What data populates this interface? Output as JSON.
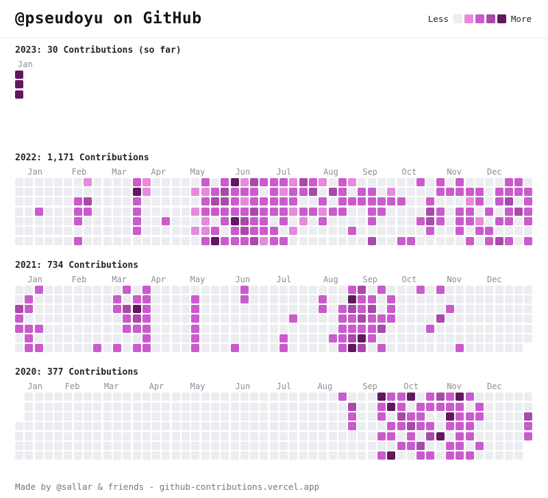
{
  "header": {
    "title": "@pseudoyu on GitHub",
    "legend": {
      "less_label": "Less",
      "more_label": "More"
    }
  },
  "colors": {
    "background": "#ffffff",
    "grade0": "#ebedf0",
    "grade1": "#e48bdc",
    "grade2": "#ca5bcc",
    "grade3": "#a74aa8",
    "grade4": "#61185f",
    "heading_text": "#24252a",
    "muted_text": "#8d8d95",
    "divider": "#eaebee"
  },
  "footer": {
    "credit": "Made by @sallar & friends - github-contributions.vercel.app"
  },
  "chart_data": {
    "type": "heatmap",
    "title": "@pseudoyu on GitHub",
    "legend": [
      "Less",
      "More"
    ],
    "levels": 5,
    "level_colors": [
      "#ebedf0",
      "#e48bdc",
      "#ca5bcc",
      "#a74aa8",
      "#61185f"
    ],
    "rows_per_week": 7,
    "notes": "weeks are strings of 7 chars top-to-bottom (Sun-Sat); digit = contribution level 0-4, '.' = day not rendered",
    "years": [
      {
        "year": "2023",
        "label": "2023: 30 Contributions (so far)",
        "total": 30,
        "months": [
          {
            "label": "Jan",
            "week": 0
          }
        ],
        "weeks": [
          "444...."
        ]
      },
      {
        "year": "2022",
        "label": "2022: 1,171 Contributions",
        "total": 1171,
        "months": [
          {
            "label": "Jan",
            "week": 1
          },
          {
            "label": "Feb",
            "week": 5.5
          },
          {
            "label": "Mar",
            "week": 9.6
          },
          {
            "label": "Apr",
            "week": 13.6
          },
          {
            "label": "May",
            "week": 17.6
          },
          {
            "label": "Jun",
            "week": 22.2
          },
          {
            "label": "Jul",
            "week": 26.4
          },
          {
            "label": "Aug",
            "week": 31.2
          },
          {
            "label": "Sep",
            "week": 35.2
          },
          {
            "label": "Oct",
            "week": 39.2
          },
          {
            "label": "Nov",
            "week": 43.8
          },
          {
            "label": "Dec",
            "week": 47.9
          }
        ],
        "weeks": [
          "0000000",
          "0000000",
          "0002000",
          "0000000",
          "0000000",
          "0000000",
          "0022202",
          "1032000",
          "0000000",
          "0000000",
          "0000000",
          "0000000",
          "2422220",
          "1100000",
          "0000000",
          "0000200",
          "0000000",
          "0000000",
          "0101010",
          "2122112",
          "0232024",
          "2332202",
          "4222422",
          "1212332",
          "3223223",
          "2022221",
          "2222022",
          "2122202",
          "1221010",
          "3202100",
          "2302000",
          "1021200",
          "0302000",
          "2222000",
          "1020020",
          "0220000",
          "0222203",
          "0022000",
          "0120000",
          "0020002",
          "0000002",
          "2000200",
          "0023320",
          "2202200",
          "0200000",
          "2202220",
          "0212202",
          "0220120",
          "0002022",
          "0220203",
          "2232202",
          "2203000",
          "0222202"
        ]
      },
      {
        "year": "2021",
        "label": "2021: 734 Contributions",
        "total": 734,
        "months": [
          {
            "label": "Jan",
            "week": 1
          },
          {
            "label": "Feb",
            "week": 5.5
          },
          {
            "label": "Mar",
            "week": 9.6
          },
          {
            "label": "Apr",
            "week": 13.6
          },
          {
            "label": "May",
            "week": 17.6
          },
          {
            "label": "Jun",
            "week": 22.2
          },
          {
            "label": "Jul",
            "week": 26.4
          },
          {
            "label": "Aug",
            "week": 31.2
          },
          {
            "label": "Sep",
            "week": 35.2
          },
          {
            "label": "Oct",
            "week": 39.2
          },
          {
            "label": "Nov",
            "week": 43.8
          },
          {
            "label": "Dec",
            "week": 47.9
          }
        ],
        "weeks": [
          "0032200",
          "0220222",
          "2000202",
          "0000000",
          "0000000",
          "0000000",
          "0000000",
          "0000000",
          "0000002",
          "0000000",
          "0220002",
          "2032200",
          "0243202",
          "2222222",
          "0000000",
          "0000000",
          "0000000",
          "0000000",
          "0222222",
          "0000000",
          "0000000",
          "0000000",
          "0000002",
          "2200000",
          "0000000",
          "0000000",
          "0000000",
          "0000022",
          "0002000",
          "0000000",
          "0000000",
          "0220000",
          "0000020",
          "0022222",
          "2432234",
          "3223243",
          "0232220",
          "2002302",
          "0222000",
          "0000000",
          "0000000",
          "2000000",
          "0000200",
          "2003000",
          "0020000",
          "0000002",
          "0000000",
          "0000000",
          "0000000",
          "0000000",
          "0000000",
          "0000000",
          "000000."
        ]
      },
      {
        "year": "2020",
        "label": "2020: 377 Contributions",
        "total": 377,
        "months": [
          {
            "label": "Jan",
            "week": 1
          },
          {
            "label": "Feb",
            "week": 4.8
          },
          {
            "label": "Mar",
            "week": 8.8
          },
          {
            "label": "Apr",
            "week": 13.4
          },
          {
            "label": "May",
            "week": 17.6
          },
          {
            "label": "Jun",
            "week": 22.2
          },
          {
            "label": "Jul",
            "week": 26.4
          },
          {
            "label": "Aug",
            "week": 30.6
          },
          {
            "label": "Sep",
            "week": 35.2
          },
          {
            "label": "Oct",
            "week": 39.4
          },
          {
            "label": "Nov",
            "week": 43.8
          },
          {
            "label": "Dec",
            "week": 47.9
          }
        ],
        "weeks": [
          "...0000",
          "0000000",
          "0000000",
          "0000000",
          "0000000",
          "0000000",
          "0000000",
          "0000000",
          "0000000",
          "0000000",
          "0000000",
          "0000000",
          "0000000",
          "0000000",
          "0000000",
          "0000000",
          "0000000",
          "0000000",
          "0000000",
          "0000000",
          "0000000",
          "0000000",
          "0000000",
          "0000000",
          "0000000",
          "0000000",
          "0000000",
          "0000000",
          "0000000",
          "0000000",
          "0000000",
          "0000000",
          "0000000",
          "2000000",
          "0322000",
          "0000000",
          "0000000",
          "4220202",
          "2402204",
          "2232020",
          "4023220",
          "0222032",
          "2202302",
          "3200400",
          "2242022",
          "4222222",
          "2022202",
          "0220020",
          "0000000",
          "0000000",
          "0000000",
          "0000000",
          "00322.."
        ]
      }
    ]
  }
}
